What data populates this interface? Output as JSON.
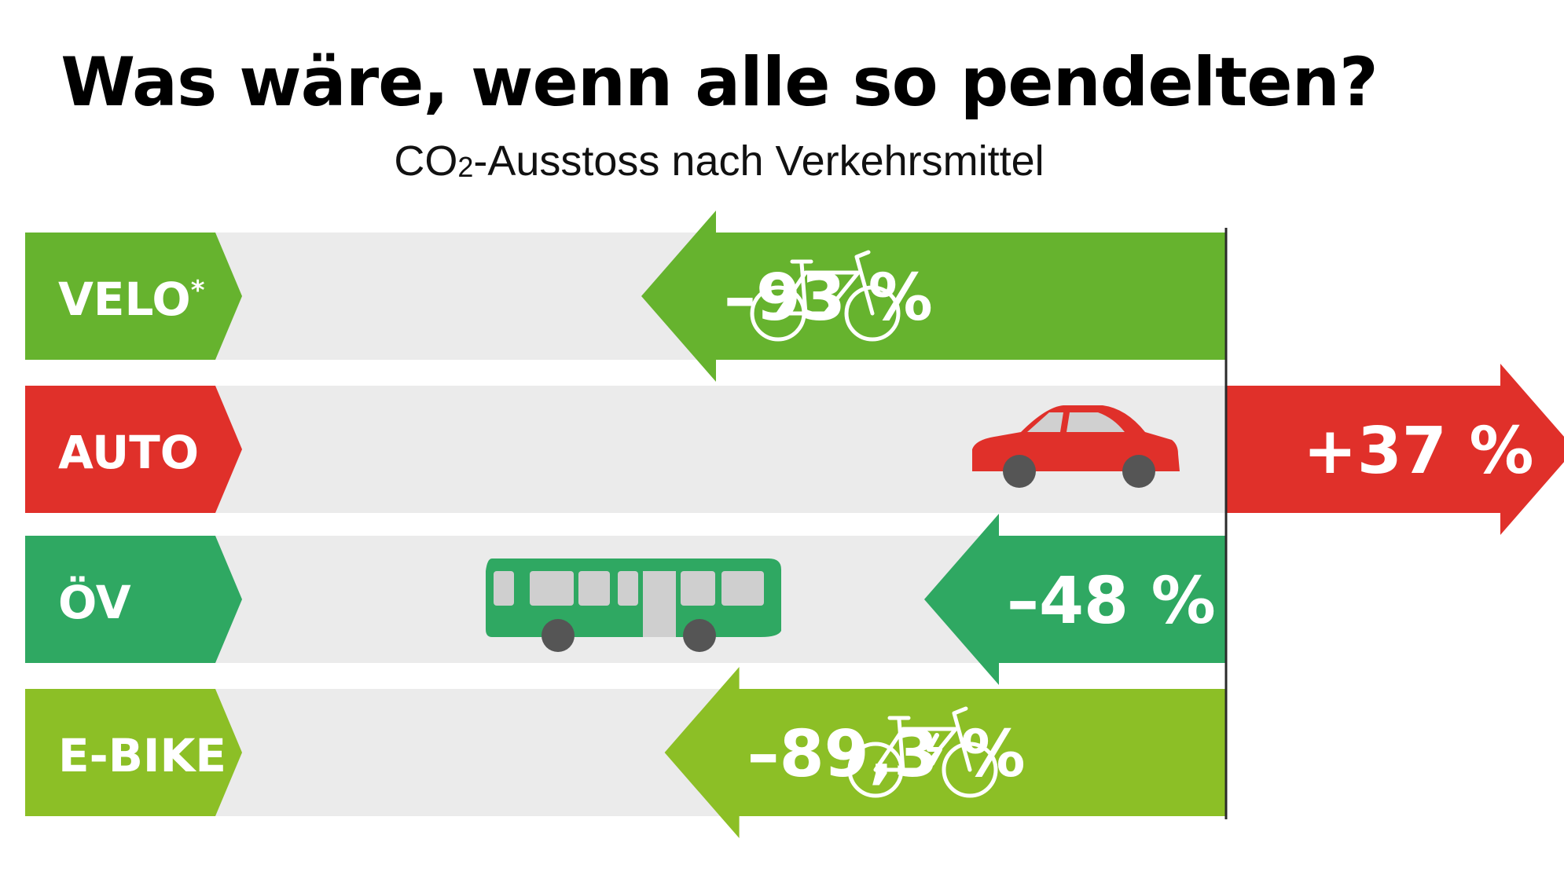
{
  "title": "Was wäre, wenn alle so pendelten?",
  "subtitle_prefix": "CO",
  "subtitle_sub": "2",
  "subtitle_rest": "-Ausstoss nach Verkehrsmittel",
  "chart_data": {
    "type": "bar",
    "orientation": "horizontal-diverging",
    "title": "Was wäre, wenn alle so pendelten?",
    "subtitle": "CO2-Ausstoss nach Verkehrsmittel",
    "xlabel": "",
    "ylabel": "",
    "categories": [
      "VELO",
      "AUTO",
      "ÖV",
      "E-BIKE"
    ],
    "category_markers": [
      "*",
      "",
      "",
      ""
    ],
    "values": [
      -93,
      37,
      -48,
      -89.3
    ],
    "value_labels": [
      "–93 %",
      "+37 %",
      "–48 %",
      "–89,3 %"
    ],
    "unit": "%",
    "colors": [
      "#66b32e",
      "#e0302a",
      "#2fa862",
      "#8cbf26"
    ],
    "icons": [
      "bicycle-icon",
      "car-icon",
      "bus-icon",
      "e-bike-icon"
    ],
    "background_track_color": "#ebebeb",
    "grid": false,
    "legend": "none"
  }
}
